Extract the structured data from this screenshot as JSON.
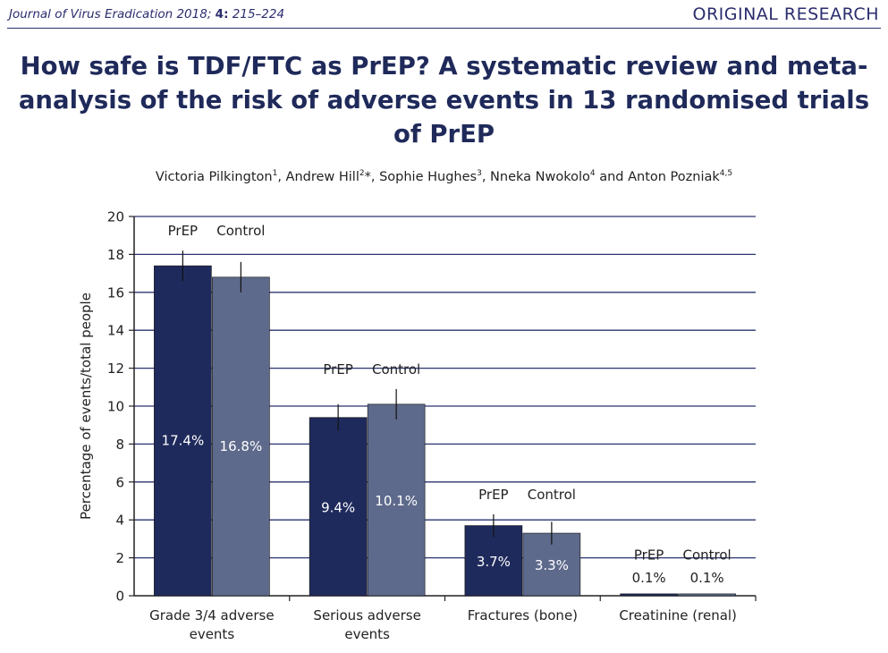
{
  "header": {
    "journal": "Journal of Virus Eradication",
    "year": "2018;",
    "volume": "4:",
    "pages": "215–224",
    "section": "ORIGINAL RESEARCH"
  },
  "title": "How safe is TDF/FTC as PrEP? A systematic review and meta-analysis of the risk of adverse events in 13 randomised trials of PrEP",
  "authors": [
    {
      "name": "Victoria Pilkington",
      "sup": "1",
      "sep": ", "
    },
    {
      "name": "Andrew Hill",
      "sup": "2",
      "mark": "*",
      "sep": ", "
    },
    {
      "name": "Sophie Hughes",
      "sup": "3",
      "sep": ", "
    },
    {
      "name": "Nneka Nwokolo",
      "sup": "4",
      "sep": " and "
    },
    {
      "name": "Anton Pozniak",
      "sup": "4,5",
      "sep": ""
    }
  ],
  "chart_data": {
    "type": "bar",
    "ylabel": "Percentage of events/total people",
    "ylim": [
      0,
      20
    ],
    "yticks": [
      0,
      2,
      4,
      6,
      8,
      10,
      12,
      14,
      16,
      18,
      20
    ],
    "grid": true,
    "categories": [
      "Grade 3/4 adverse events",
      "Serious adverse events",
      "Fractures (bone)",
      "Creatinine (renal)"
    ],
    "series": [
      {
        "name": "PrEP",
        "color": "#1f2a5c",
        "values": [
          17.4,
          9.4,
          3.7,
          0.1
        ],
        "labels": [
          "17.4%",
          "9.4%",
          "3.7%",
          "0.1%"
        ],
        "err_high": [
          18.2,
          10.1,
          4.3,
          null
        ],
        "err_low": [
          16.6,
          8.7,
          3.1,
          null
        ]
      },
      {
        "name": "Control",
        "color": "#5e6a8b",
        "values": [
          16.8,
          10.1,
          3.3,
          0.1
        ],
        "labels": [
          "16.8%",
          "10.1%",
          "3.3%",
          "0.1%"
        ],
        "err_high": [
          17.6,
          10.9,
          3.9,
          null
        ],
        "err_low": [
          16.0,
          9.3,
          2.7,
          null
        ]
      }
    ]
  }
}
